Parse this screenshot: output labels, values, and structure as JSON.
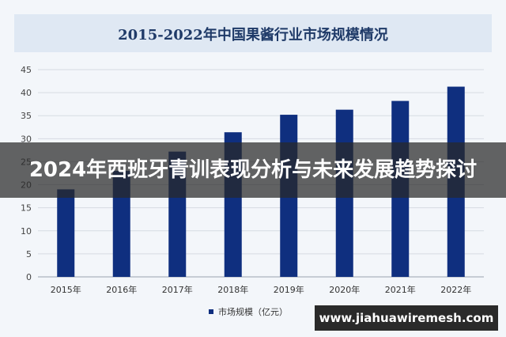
{
  "banner": {
    "headline": "2024年西班牙青训表现分析与未来发展趋势探讨"
  },
  "site": {
    "url": "www.jiahuawiremesh.com"
  },
  "colors": {
    "bar": "#0f2f7f",
    "title": "#1f3a68",
    "title_band": "#dfe8f3",
    "banner_overlay": "#282828"
  },
  "chart_data": {
    "type": "bar",
    "title": "2015-2022年中国果酱行业市场规模情况",
    "xlabel": "",
    "ylabel": "",
    "categories": [
      "2015年",
      "2016年",
      "2017年",
      "2018年",
      "2019年",
      "2020年",
      "2021年",
      "2022年"
    ],
    "series": [
      {
        "name": "市场规模（亿元）",
        "values": [
          19.0,
          23.0,
          27.2,
          31.4,
          35.2,
          36.3,
          38.2,
          41.3
        ]
      }
    ],
    "ylim": [
      0,
      45
    ],
    "yticks": [
      0,
      5,
      10,
      15,
      20,
      25,
      30,
      35,
      40,
      45
    ],
    "grid": true,
    "legend": "bottom-center"
  }
}
